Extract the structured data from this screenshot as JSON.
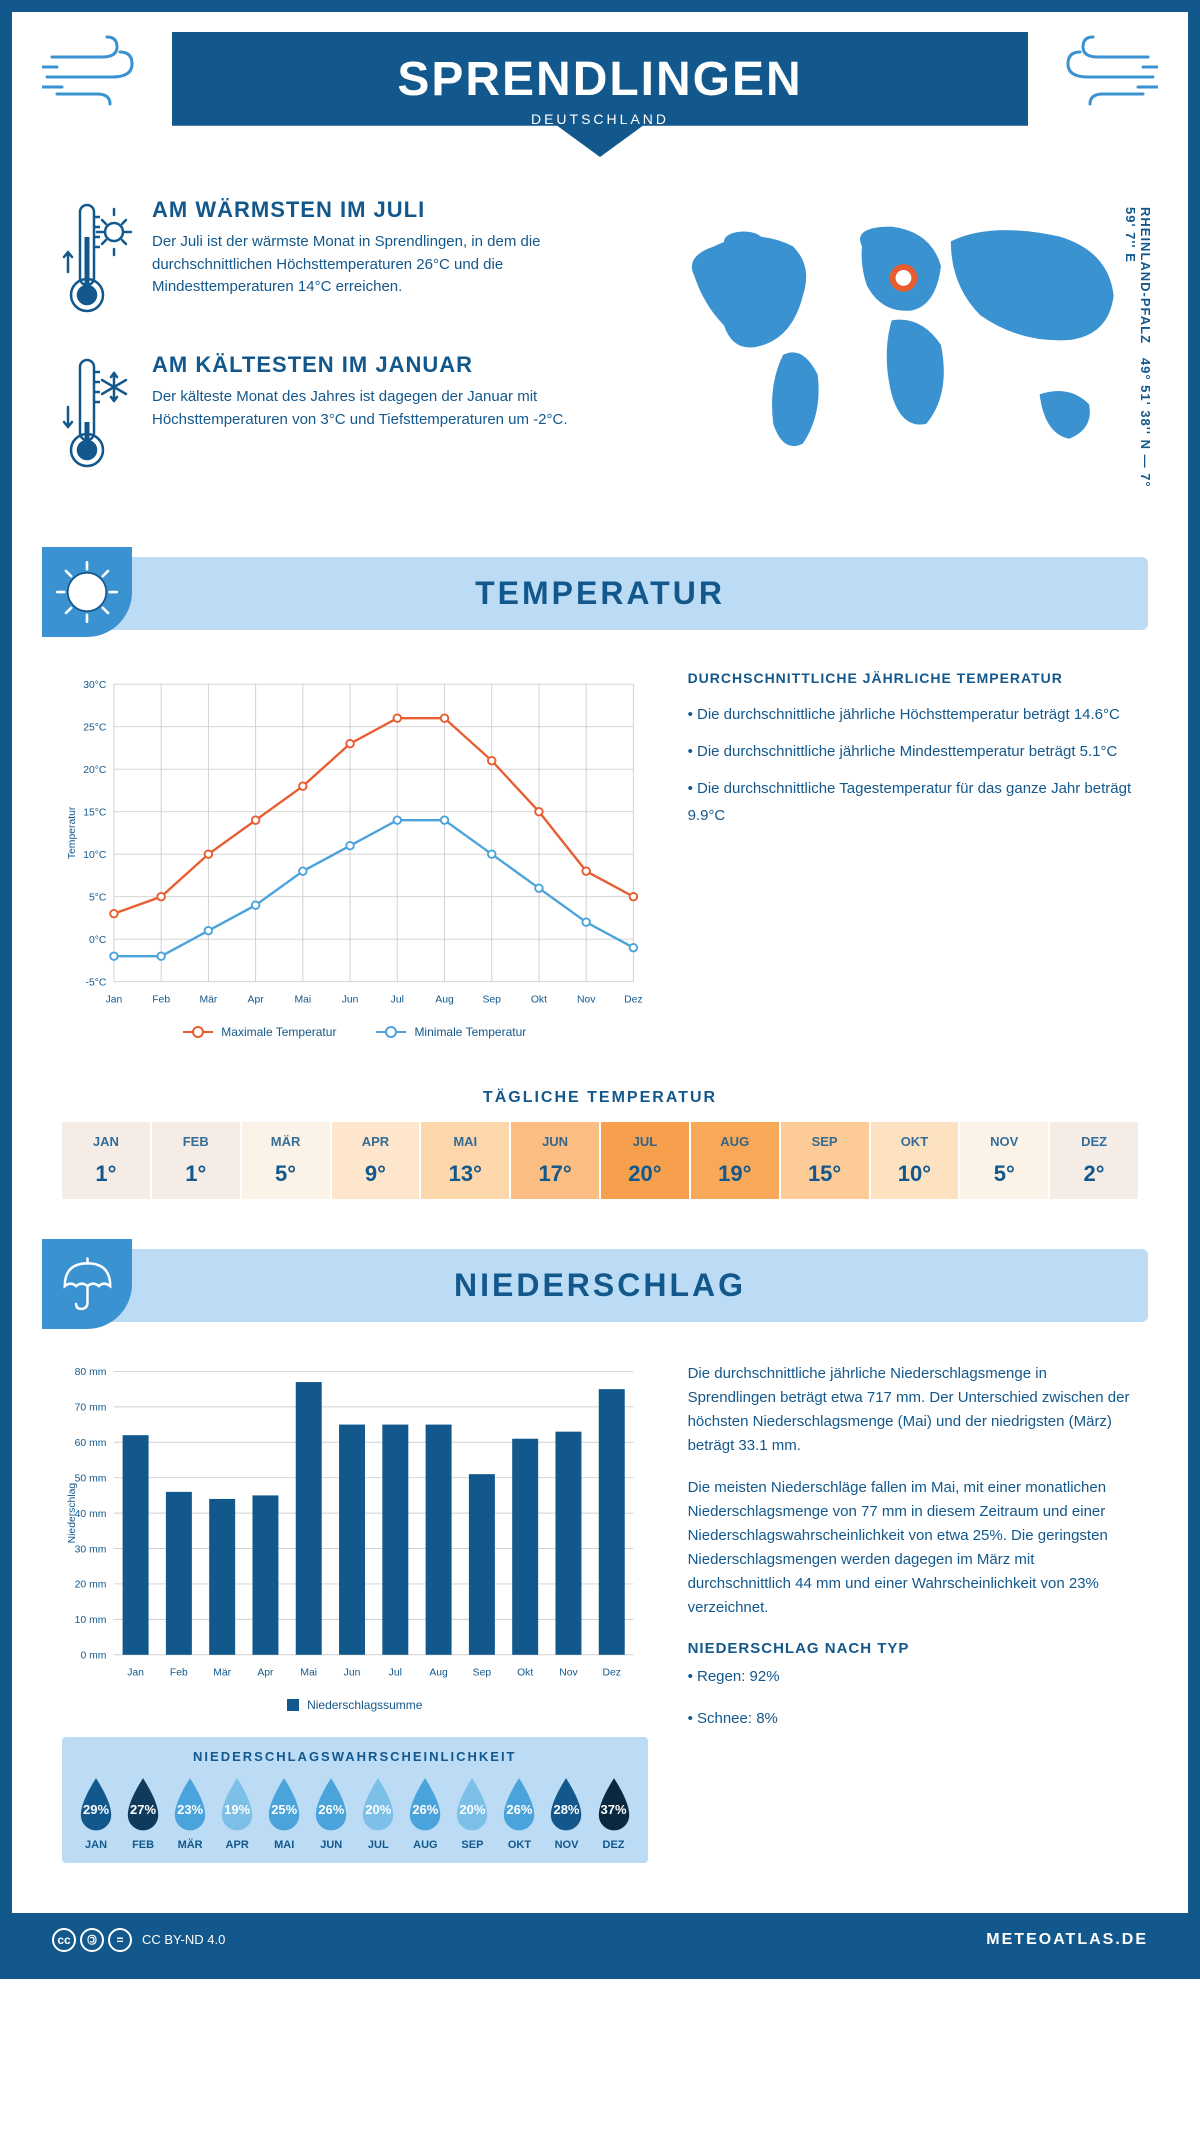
{
  "header": {
    "title": "SPRENDLINGEN",
    "subtitle": "DEUTSCHLAND"
  },
  "coords": "49° 51' 38'' N — 7° 59' 7'' E",
  "region": "RHEINLAND-PFALZ",
  "facts": {
    "warm": {
      "title": "AM WÄRMSTEN IM JULI",
      "text": "Der Juli ist der wärmste Monat in Sprendlingen, in dem die durchschnittlichen Höchsttemperaturen 26°C und die Mindesttemperaturen 14°C erreichen."
    },
    "cold": {
      "title": "AM KÄLTESTEN IM JANUAR",
      "text": "Der kälteste Monat des Jahres ist dagegen der Januar mit Höchsttemperaturen von 3°C und Tiefsttemperaturen um -2°C."
    }
  },
  "sections": {
    "temp": "TEMPERATUR",
    "precip": "NIEDERSCHLAG"
  },
  "temp_chart": {
    "months": [
      "Jan",
      "Feb",
      "Mär",
      "Apr",
      "Mai",
      "Jun",
      "Jul",
      "Aug",
      "Sep",
      "Okt",
      "Nov",
      "Dez"
    ],
    "max": [
      3,
      5,
      10,
      14,
      18,
      23,
      26,
      26,
      21,
      15,
      8,
      5
    ],
    "min": [
      -2,
      -2,
      1,
      4,
      8,
      11,
      14,
      14,
      10,
      6,
      2,
      -1
    ],
    "ylim": [
      -5,
      30
    ],
    "ytick_step": 5,
    "y_axis_title": "Temperatur",
    "colors": {
      "max": "#e85d2f",
      "min": "#4ba3db",
      "grid": "#d0d0d0"
    },
    "legend": {
      "max": "Maximale Temperatur",
      "min": "Minimale Temperatur"
    }
  },
  "temp_info": {
    "title": "DURCHSCHNITTLICHE JÄHRLICHE TEMPERATUR",
    "bullets": [
      "• Die durchschnittliche jährliche Höchsttemperatur beträgt 14.6°C",
      "• Die durchschnittliche jährliche Mindesttemperatur beträgt 5.1°C",
      "• Die durchschnittliche Tagestemperatur für das ganze Jahr beträgt 9.9°C"
    ]
  },
  "daily": {
    "title": "TÄGLICHE TEMPERATUR",
    "months": [
      "JAN",
      "FEB",
      "MÄR",
      "APR",
      "MAI",
      "JUN",
      "JUL",
      "AUG",
      "SEP",
      "OKT",
      "NOV",
      "DEZ"
    ],
    "values": [
      "1°",
      "1°",
      "5°",
      "9°",
      "13°",
      "17°",
      "20°",
      "19°",
      "15°",
      "10°",
      "5°",
      "2°"
    ],
    "colors": [
      "#f4ece5",
      "#f4ece5",
      "#fcf3e8",
      "#fde6cc",
      "#fdd6ac",
      "#fbbd82",
      "#f6a04e",
      "#f7a858",
      "#fccb98",
      "#fde2c2",
      "#fcf3e8",
      "#f4ece5"
    ]
  },
  "precip_chart": {
    "months": [
      "Jan",
      "Feb",
      "Mär",
      "Apr",
      "Mai",
      "Jun",
      "Jul",
      "Aug",
      "Sep",
      "Okt",
      "Nov",
      "Dez"
    ],
    "values": [
      62,
      46,
      44,
      45,
      77,
      65,
      65,
      65,
      51,
      61,
      63,
      75
    ],
    "ylim": [
      0,
      80
    ],
    "ytick_step": 10,
    "y_axis_title": "Niederschlag",
    "bar_color": "#13588c",
    "grid_color": "#d0d0d0",
    "legend": "Niederschlagssumme"
  },
  "precip_text": {
    "p1": "Die durchschnittliche jährliche Niederschlagsmenge in Sprendlingen beträgt etwa 717 mm. Der Unterschied zwischen der höchsten Niederschlagsmenge (Mai) und der niedrigsten (März) beträgt 33.1 mm.",
    "p2": "Die meisten Niederschläge fallen im Mai, mit einer monatlichen Niederschlagsmenge von 77 mm in diesem Zeitraum und einer Niederschlagswahrscheinlichkeit von etwa 25%. Die geringsten Niederschlagsmengen werden dagegen im März mit durchschnittlich 44 mm und einer Wahrscheinlichkeit von 23% verzeichnet.",
    "type_title": "NIEDERSCHLAG NACH TYP",
    "type_bullets": [
      "• Regen: 92%",
      "• Schnee: 8%"
    ]
  },
  "prob": {
    "title": "NIEDERSCHLAGSWAHRSCHEINLICHKEIT",
    "months": [
      "JAN",
      "FEB",
      "MÄR",
      "APR",
      "MAI",
      "JUN",
      "JUL",
      "AUG",
      "SEP",
      "OKT",
      "NOV",
      "DEZ"
    ],
    "values": [
      "29%",
      "27%",
      "23%",
      "19%",
      "25%",
      "26%",
      "20%",
      "26%",
      "20%",
      "26%",
      "28%",
      "37%"
    ],
    "colors": [
      "#13588c",
      "#0f3a5c",
      "#4ba3db",
      "#7cc0e8",
      "#4ba3db",
      "#4ba3db",
      "#7cc0e8",
      "#4ba3db",
      "#7cc0e8",
      "#4ba3db",
      "#13588c",
      "#0a2940"
    ]
  },
  "footer": {
    "license": "CC BY-ND 4.0",
    "site": "METEOATLAS.DE"
  }
}
